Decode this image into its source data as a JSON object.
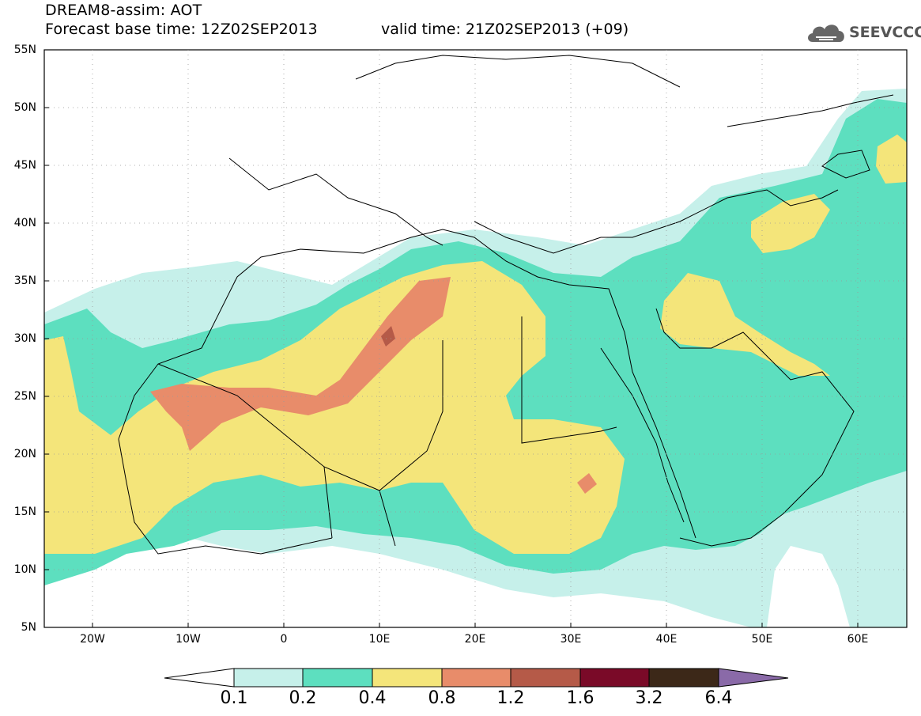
{
  "header": {
    "title": "DREAM8-assim: AOT",
    "base_time": "Forecast base time: 12Z02SEP2013",
    "valid_time": "valid time: 21Z02SEP2013 (+09)"
  },
  "logo": {
    "text": "SEEVCCC",
    "icon": "cloud-icon"
  },
  "map": {
    "lat_labels": [
      "55N",
      "50N",
      "45N",
      "40N",
      "35N",
      "30N",
      "25N",
      "20N",
      "15N",
      "10N",
      "5N"
    ],
    "lon_labels": [
      "20W",
      "10W",
      "0",
      "10E",
      "20E",
      "30E",
      "40E",
      "50E",
      "60E"
    ]
  },
  "colorbar": {
    "levels": [
      "0.1",
      "0.2",
      "0.4",
      "0.8",
      "1.2",
      "1.6",
      "3.2",
      "6.4"
    ],
    "colors": [
      "#c6f0ea",
      "#5ddfbf",
      "#f4e57a",
      "#e88c6a",
      "#b55a48",
      "#7a0a28",
      "#3c2818",
      "#8a6aa8"
    ]
  },
  "colors": {
    "c1": "#c6f0ea",
    "c2": "#5ddfbf",
    "c3": "#f4e57a",
    "c4": "#e88c6a",
    "c5": "#b55a48",
    "c6": "#7a0a28"
  }
}
